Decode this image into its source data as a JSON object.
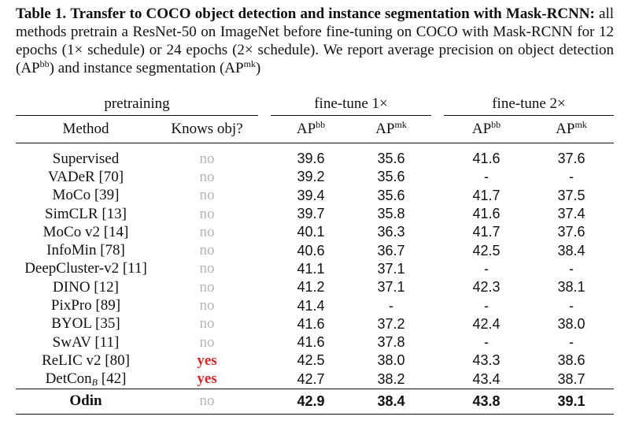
{
  "caption": {
    "label": "Table 1.",
    "title": "Transfer to COCO object detection and instance segmentation with Mask-RCNN:",
    "text1": " all methods pretrain a ResNet-50 on ImageNet before fine-tuning on COCO with Mask-RCNN for 12 epochs (1× schedule) or 24 epochs (2× schedule). We report average precision on object detection (AP",
    "sup_bb": "bb",
    "text2": ") and instance segmentation (AP",
    "sup_mk": "mk",
    "text3": ")"
  },
  "table": {
    "groups": {
      "pretraining": "pretraining",
      "ft1": "fine-tune 1×",
      "ft2": "fine-tune 2×"
    },
    "columns": {
      "method": "Method",
      "knows": "Knows obj?",
      "ap": "AP",
      "bb": "bb",
      "mk": "mk"
    },
    "rows": [
      {
        "method": "Supervised",
        "knows": "no",
        "a": "39.6",
        "b": "35.6",
        "c": "41.6",
        "d": "37.6"
      },
      {
        "method": "VADeR [70]",
        "knows": "no",
        "a": "39.2",
        "b": "35.6",
        "c": "-",
        "d": "-"
      },
      {
        "method": "MoCo [39]",
        "knows": "no",
        "a": "39.4",
        "b": "35.6",
        "c": "41.7",
        "d": "37.5"
      },
      {
        "method": "SimCLR [13]",
        "knows": "no",
        "a": "39.7",
        "b": "35.8",
        "c": "41.6",
        "d": "37.4"
      },
      {
        "method": "MoCo v2 [14]",
        "knows": "no",
        "a": "40.1",
        "b": "36.3",
        "c": "41.7",
        "d": "37.6"
      },
      {
        "method": "InfoMin [78]",
        "knows": "no",
        "a": "40.6",
        "b": "36.7",
        "c": "42.5",
        "d": "38.4"
      },
      {
        "method": "DeepCluster-v2 [11]",
        "knows": "no",
        "a": "41.1",
        "b": "37.1",
        "c": "-",
        "d": "-"
      },
      {
        "method": "DINO [12]",
        "knows": "no",
        "a": "41.2",
        "b": "37.1",
        "c": "42.3",
        "d": "38.1"
      },
      {
        "method": "PixPro [89]",
        "knows": "no",
        "a": "41.4",
        "b": "-",
        "c": "-",
        "d": "-"
      },
      {
        "method": "BYOL [35]",
        "knows": "no",
        "a": "41.6",
        "b": "37.2",
        "c": "42.4",
        "d": "38.0"
      },
      {
        "method": "SwAV [11]",
        "knows": "no",
        "a": "41.6",
        "b": "37.8",
        "c": "-",
        "d": "-"
      },
      {
        "method": "ReLIC v2 [80]",
        "knows": "yes",
        "a": "42.5",
        "b": "38.0",
        "c": "43.3",
        "d": "38.6"
      },
      {
        "method": "DetCon",
        "method_sub": "B",
        "method_ref": " [42]",
        "knows": "yes",
        "a": "42.7",
        "b": "38.2",
        "c": "43.4",
        "d": "38.7"
      }
    ],
    "final": {
      "method": "Odin",
      "knows": "no",
      "a": "42.9",
      "b": "38.4",
      "c": "43.8",
      "d": "39.1"
    }
  }
}
